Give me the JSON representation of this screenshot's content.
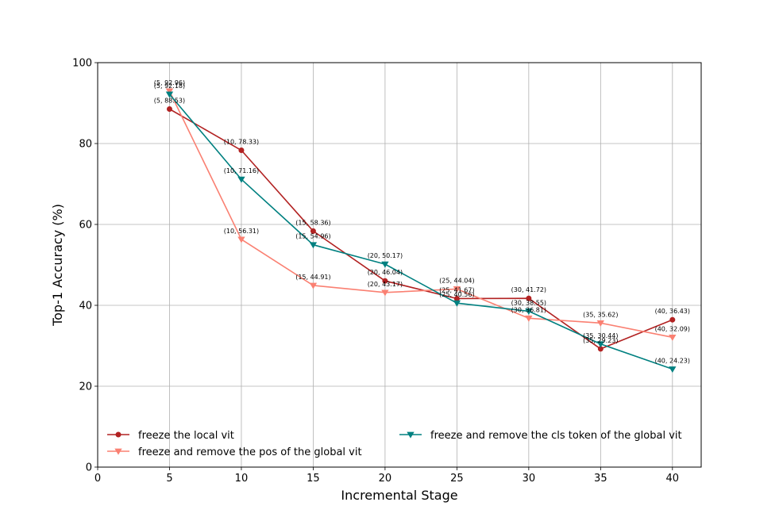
{
  "chart_data": {
    "type": "line",
    "xlabel": "Incremental Stage",
    "ylabel": "Top-1 Accuracy (%)",
    "xlim": [
      0,
      42
    ],
    "ylim": [
      0,
      100
    ],
    "xticks": [
      0,
      5,
      10,
      15,
      20,
      25,
      30,
      35,
      40
    ],
    "yticks": [
      0,
      20,
      40,
      60,
      80,
      100
    ],
    "grid": true,
    "legend_position": "lower center",
    "series": [
      {
        "name": "freeze the local vit",
        "color": "#b22222",
        "marker": "circle",
        "x": [
          5,
          10,
          15,
          20,
          25,
          30,
          35,
          40
        ],
        "y": [
          88.53,
          78.33,
          58.36,
          46.04,
          41.67,
          41.72,
          29.23,
          36.43
        ],
        "labels": [
          "(5, 88.53)",
          "(10, 78.33)",
          "(15, 58.36)",
          "(20, 46.04)",
          "(25, 41.67)",
          "(30, 41.72)",
          "(35, 29.23)",
          "(40, 36.43)"
        ]
      },
      {
        "name": "freeze and remove the pos of the global vit",
        "color": "#fa8072",
        "marker": "triangle-down",
        "x": [
          5,
          10,
          15,
          20,
          25,
          30,
          35,
          40
        ],
        "y": [
          92.96,
          56.31,
          44.91,
          43.17,
          44.04,
          36.81,
          35.62,
          32.09
        ],
        "labels": [
          "(5, 92.96)",
          "(10, 56.31)",
          "(15, 44.91)",
          "(20, 43.17)",
          "(25, 44.04)",
          "(30, 36.81)",
          "(35, 35.62)",
          "(40, 32.09)"
        ]
      },
      {
        "name": "freeze and remove the cls token of the global vit",
        "color": "#008080",
        "marker": "triangle-down",
        "x": [
          5,
          10,
          15,
          20,
          25,
          30,
          35,
          40
        ],
        "y": [
          92.18,
          71.16,
          54.96,
          50.17,
          40.56,
          38.55,
          30.44,
          24.23
        ],
        "labels": [
          "(5, 92.18)",
          "(10, 71.16)",
          "(15, 54.96)",
          "(20, 50.17)",
          "(25, 40.56)",
          "(30, 38.55)",
          "(35, 30.44)",
          "(40, 24.23)"
        ]
      }
    ]
  }
}
